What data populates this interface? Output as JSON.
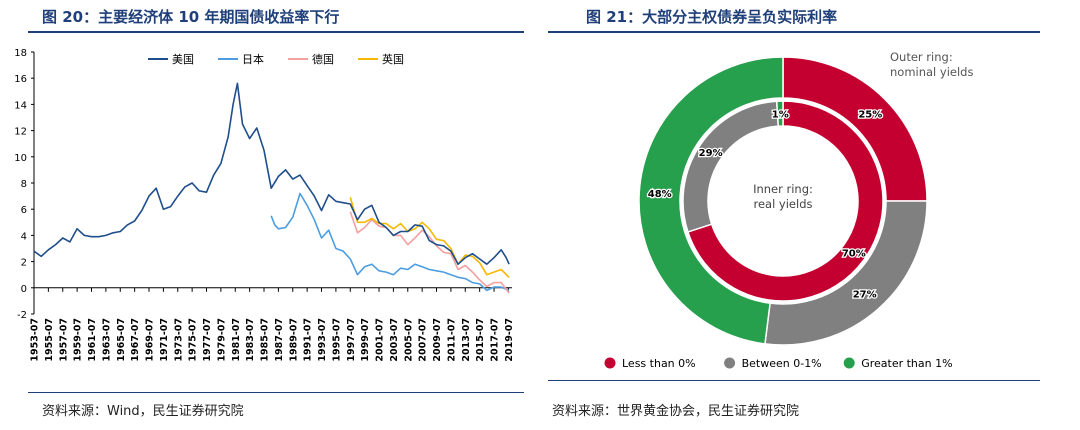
{
  "left": {
    "title": "图 20：主要经济体 10 年期国债收益率下行",
    "source": "资料来源：Wind，民生证券研究院",
    "chart_data": {
      "type": "line",
      "title": "",
      "xlabel": "",
      "ylabel": "",
      "ylim": [
        -2,
        18
      ],
      "yticks": [
        -2,
        0,
        2,
        4,
        6,
        8,
        10,
        12,
        14,
        16,
        18
      ],
      "xlim": [
        1953.5,
        2020.0
      ],
      "xticks": [
        "1953-07",
        "1955-07",
        "1957-07",
        "1959-07",
        "1961-07",
        "1963-07",
        "1965-07",
        "1967-07",
        "1969-07",
        "1971-07",
        "1973-07",
        "1975-07",
        "1977-07",
        "1979-07",
        "1981-07",
        "1983-07",
        "1985-07",
        "1987-07",
        "1989-07",
        "1991-07",
        "1993-07",
        "1995-07",
        "1997-07",
        "1999-07",
        "2001-07",
        "2003-07",
        "2005-07",
        "2007-07",
        "2009-07",
        "2011-07",
        "2013-07",
        "2015-07",
        "2017-07",
        "2019-07"
      ],
      "legend_position": "top-center",
      "grid": false,
      "series": [
        {
          "name": "美国",
          "color": "#1f4e8c",
          "x": [
            1953.5,
            1954.5,
            1955.5,
            1956.5,
            1957.5,
            1958.5,
            1959.5,
            1960.5,
            1961.5,
            1962.5,
            1963.5,
            1964.5,
            1965.5,
            1966.5,
            1967.5,
            1968.5,
            1969.5,
            1970.5,
            1971.5,
            1972.5,
            1973.5,
            1974.5,
            1975.5,
            1976.5,
            1977.5,
            1978.5,
            1979.5,
            1980.5,
            1981.2,
            1981.8,
            1982.5,
            1983.5,
            1984.5,
            1985.5,
            1986.5,
            1987.5,
            1988.5,
            1989.5,
            1990.5,
            1991.5,
            1992.5,
            1993.5,
            1994.5,
            1995.5,
            1996.5,
            1997.5,
            1998.5,
            1999.5,
            2000.5,
            2001.5,
            2002.5,
            2003.5,
            2004.5,
            2005.5,
            2006.5,
            2007.5,
            2008.5,
            2009.5,
            2010.5,
            2011.5,
            2012.5,
            2013.5,
            2014.5,
            2015.5,
            2016.5,
            2017.5,
            2018.5,
            2019.2,
            2019.6
          ],
          "y": [
            2.8,
            2.4,
            2.9,
            3.3,
            3.8,
            3.5,
            4.5,
            4.0,
            3.9,
            3.9,
            4.0,
            4.2,
            4.3,
            4.8,
            5.1,
            5.9,
            7.0,
            7.6,
            6.0,
            6.2,
            7.0,
            7.7,
            8.0,
            7.4,
            7.3,
            8.6,
            9.5,
            11.5,
            14.0,
            15.6,
            12.5,
            11.4,
            12.2,
            10.5,
            7.6,
            8.5,
            9.0,
            8.3,
            8.6,
            7.8,
            7.0,
            5.9,
            7.1,
            6.6,
            6.5,
            6.4,
            5.2,
            6.0,
            6.3,
            5.0,
            4.6,
            4.0,
            4.3,
            4.3,
            4.8,
            4.7,
            3.6,
            3.3,
            3.2,
            2.8,
            1.8,
            2.3,
            2.6,
            2.2,
            1.8,
            2.3,
            2.9,
            2.3,
            1.8
          ]
        },
        {
          "name": "日本",
          "color": "#4d9de0",
          "x": [
            1986.5,
            1987.0,
            1987.5,
            1988.5,
            1989.5,
            1990.5,
            1991.5,
            1992.5,
            1993.5,
            1994.5,
            1995.5,
            1996.5,
            1997.5,
            1998.5,
            1999.5,
            2000.5,
            2001.5,
            2002.5,
            2003.5,
            2004.5,
            2005.5,
            2006.5,
            2007.5,
            2008.5,
            2009.5,
            2010.5,
            2011.5,
            2012.5,
            2013.5,
            2014.5,
            2015.5,
            2016.5,
            2017.5,
            2018.5,
            2019.6
          ],
          "y": [
            5.5,
            4.8,
            4.5,
            4.6,
            5.4,
            7.2,
            6.3,
            5.2,
            3.8,
            4.4,
            3.0,
            2.8,
            2.2,
            1.0,
            1.6,
            1.8,
            1.3,
            1.2,
            1.0,
            1.5,
            1.4,
            1.8,
            1.6,
            1.4,
            1.3,
            1.2,
            1.0,
            0.8,
            0.7,
            0.4,
            0.3,
            -0.2,
            0.05,
            0.05,
            -0.2
          ]
        },
        {
          "name": "德国",
          "color": "#f4a0a0",
          "x": [
            1997.5,
            1998.5,
            1999.5,
            2000.5,
            2001.5,
            2002.5,
            2003.5,
            2004.5,
            2005.5,
            2006.5,
            2007.5,
            2008.5,
            2009.5,
            2010.5,
            2011.5,
            2012.5,
            2013.5,
            2014.5,
            2015.5,
            2016.5,
            2017.5,
            2018.5,
            2019.6
          ],
          "y": [
            5.8,
            4.2,
            4.6,
            5.2,
            4.7,
            4.6,
            4.0,
            4.0,
            3.3,
            3.8,
            4.4,
            3.9,
            3.2,
            2.7,
            2.6,
            1.4,
            1.7,
            1.2,
            0.6,
            0.1,
            0.4,
            0.4,
            -0.4
          ]
        },
        {
          "name": "英国",
          "color": "#f6b800",
          "x": [
            1997.5,
            1998.5,
            1999.5,
            2000.5,
            2001.5,
            2002.5,
            2003.5,
            2004.5,
            2005.5,
            2006.5,
            2007.5,
            2008.5,
            2009.5,
            2010.5,
            2011.5,
            2012.5,
            2013.5,
            2014.5,
            2015.5,
            2016.5,
            2017.5,
            2018.5,
            2019.6
          ],
          "y": [
            6.9,
            5.0,
            5.0,
            5.3,
            4.9,
            4.9,
            4.5,
            4.9,
            4.3,
            4.5,
            5.0,
            4.5,
            3.7,
            3.6,
            3.0,
            1.8,
            2.5,
            2.4,
            1.9,
            1.0,
            1.2,
            1.4,
            0.8
          ]
        }
      ]
    }
  },
  "right": {
    "title": "图 21：大部分主权债券呈负实际利率",
    "source": "资料来源：世界黄金协会，民生证券研究院",
    "chart_data": {
      "type": "pie",
      "title": "",
      "legend_position": "bottom",
      "categories": [
        "Less than 0%",
        "Between 0-1%",
        "Greater than 1%"
      ],
      "colors": [
        "#c3002f",
        "#808080",
        "#27a04d"
      ],
      "outer_ring": {
        "label": "Outer ring:\nnominal yields",
        "values": [
          25,
          27,
          48
        ]
      },
      "inner_ring": {
        "label": "Inner ring:\nreal yields",
        "values": [
          70,
          29,
          1
        ]
      }
    }
  }
}
